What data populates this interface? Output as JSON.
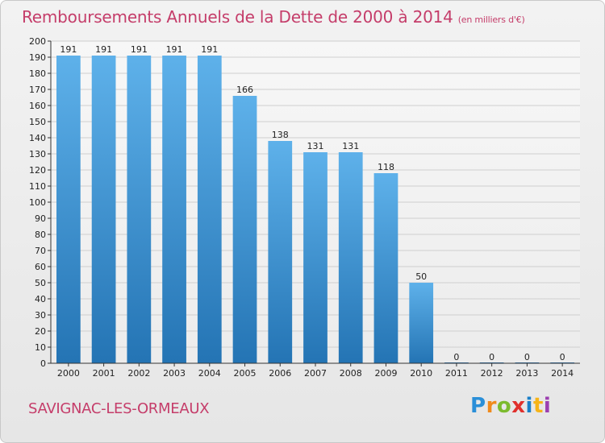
{
  "header": {
    "title": "Remboursements Annuels de la Dette de 2000 à 2014",
    "unit": "(en milliers d'€)"
  },
  "footer": {
    "location": "SAVIGNAC-LES-ORMEAUX",
    "logo": "Proxiti",
    "logo_letters": [
      "P",
      "r",
      "o",
      "x",
      "i",
      "t",
      "i"
    ]
  },
  "chart_data": {
    "type": "bar",
    "title": "Remboursements Annuels de la Dette de 2000 à 2014",
    "subtitle": "(en milliers d'€)",
    "xlabel": "",
    "ylabel": "",
    "categories": [
      "2000",
      "2001",
      "2002",
      "2003",
      "2004",
      "2005",
      "2006",
      "2007",
      "2008",
      "2009",
      "2010",
      "2011",
      "2012",
      "2013",
      "2014"
    ],
    "values": [
      191,
      191,
      191,
      191,
      191,
      166,
      138,
      131,
      131,
      118,
      50,
      0,
      0,
      0,
      0
    ],
    "ylim": [
      0,
      200
    ],
    "ytick_step": 10,
    "grid": true,
    "legend": "none",
    "colors": {
      "bar_top": "#5eb1ea",
      "bar_bottom": "#2474b4",
      "grid": "#cfcfcf",
      "axis": "#333333",
      "accent": "#c53d6a"
    }
  }
}
